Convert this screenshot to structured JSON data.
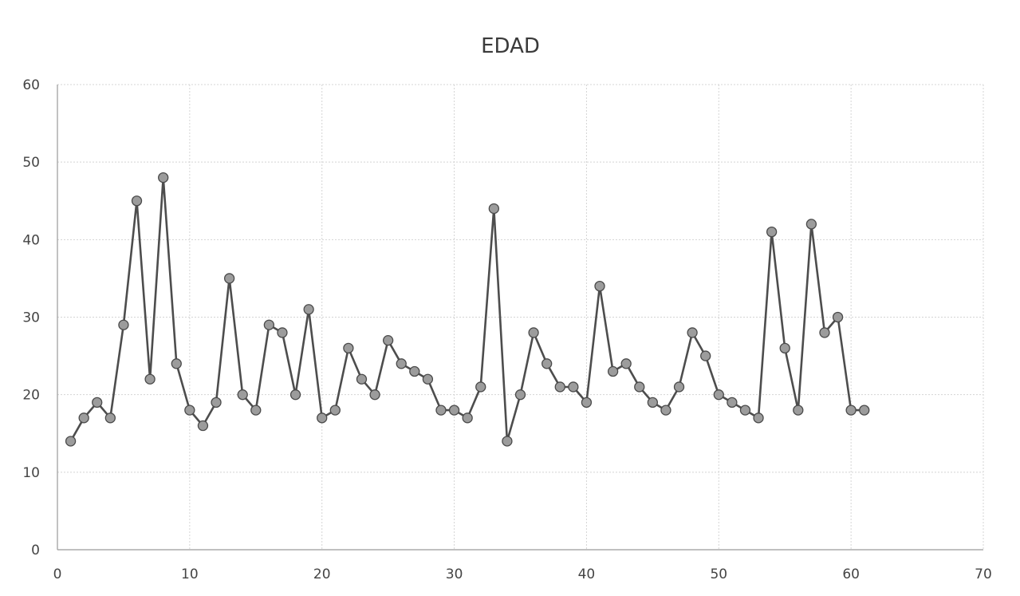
{
  "chart_data": {
    "type": "scatter",
    "title": "EDAD",
    "xlabel": "",
    "ylabel": "",
    "xlim": [
      0,
      70
    ],
    "ylim": [
      0,
      60
    ],
    "x_ticks": [
      0,
      10,
      20,
      30,
      40,
      50,
      60,
      70
    ],
    "y_ticks": [
      0,
      10,
      20,
      30,
      40,
      50,
      60
    ],
    "grid": true,
    "legend": "none",
    "line_color": "#4d4d4d",
    "marker_color": "#9c9c9c",
    "series": [
      {
        "x": [
          1,
          2,
          3,
          4,
          5,
          6,
          7,
          8,
          9,
          10,
          11,
          12,
          13,
          14,
          15,
          16,
          17,
          18,
          19,
          20,
          21,
          22,
          23,
          24,
          25,
          26,
          27,
          28,
          29,
          30,
          31,
          32,
          33,
          34,
          35,
          36,
          37,
          38,
          39,
          40,
          41,
          42,
          43,
          44,
          45,
          46,
          47,
          48,
          49,
          50,
          51,
          52,
          53,
          54,
          55,
          56,
          57,
          58,
          59,
          60,
          61
        ],
        "y": [
          14,
          17,
          19,
          17,
          29,
          45,
          22,
          48,
          24,
          18,
          16,
          19,
          35,
          20,
          18,
          29,
          28,
          20,
          31,
          17,
          18,
          26,
          22,
          20,
          27,
          24,
          23,
          22,
          18,
          18,
          17,
          21,
          44,
          14,
          20,
          28,
          24,
          21,
          21,
          19,
          34,
          23,
          24,
          21,
          19,
          18,
          21,
          28,
          25,
          20,
          19,
          18,
          17,
          41,
          26,
          18,
          42,
          28,
          30,
          18,
          18
        ]
      }
    ]
  }
}
